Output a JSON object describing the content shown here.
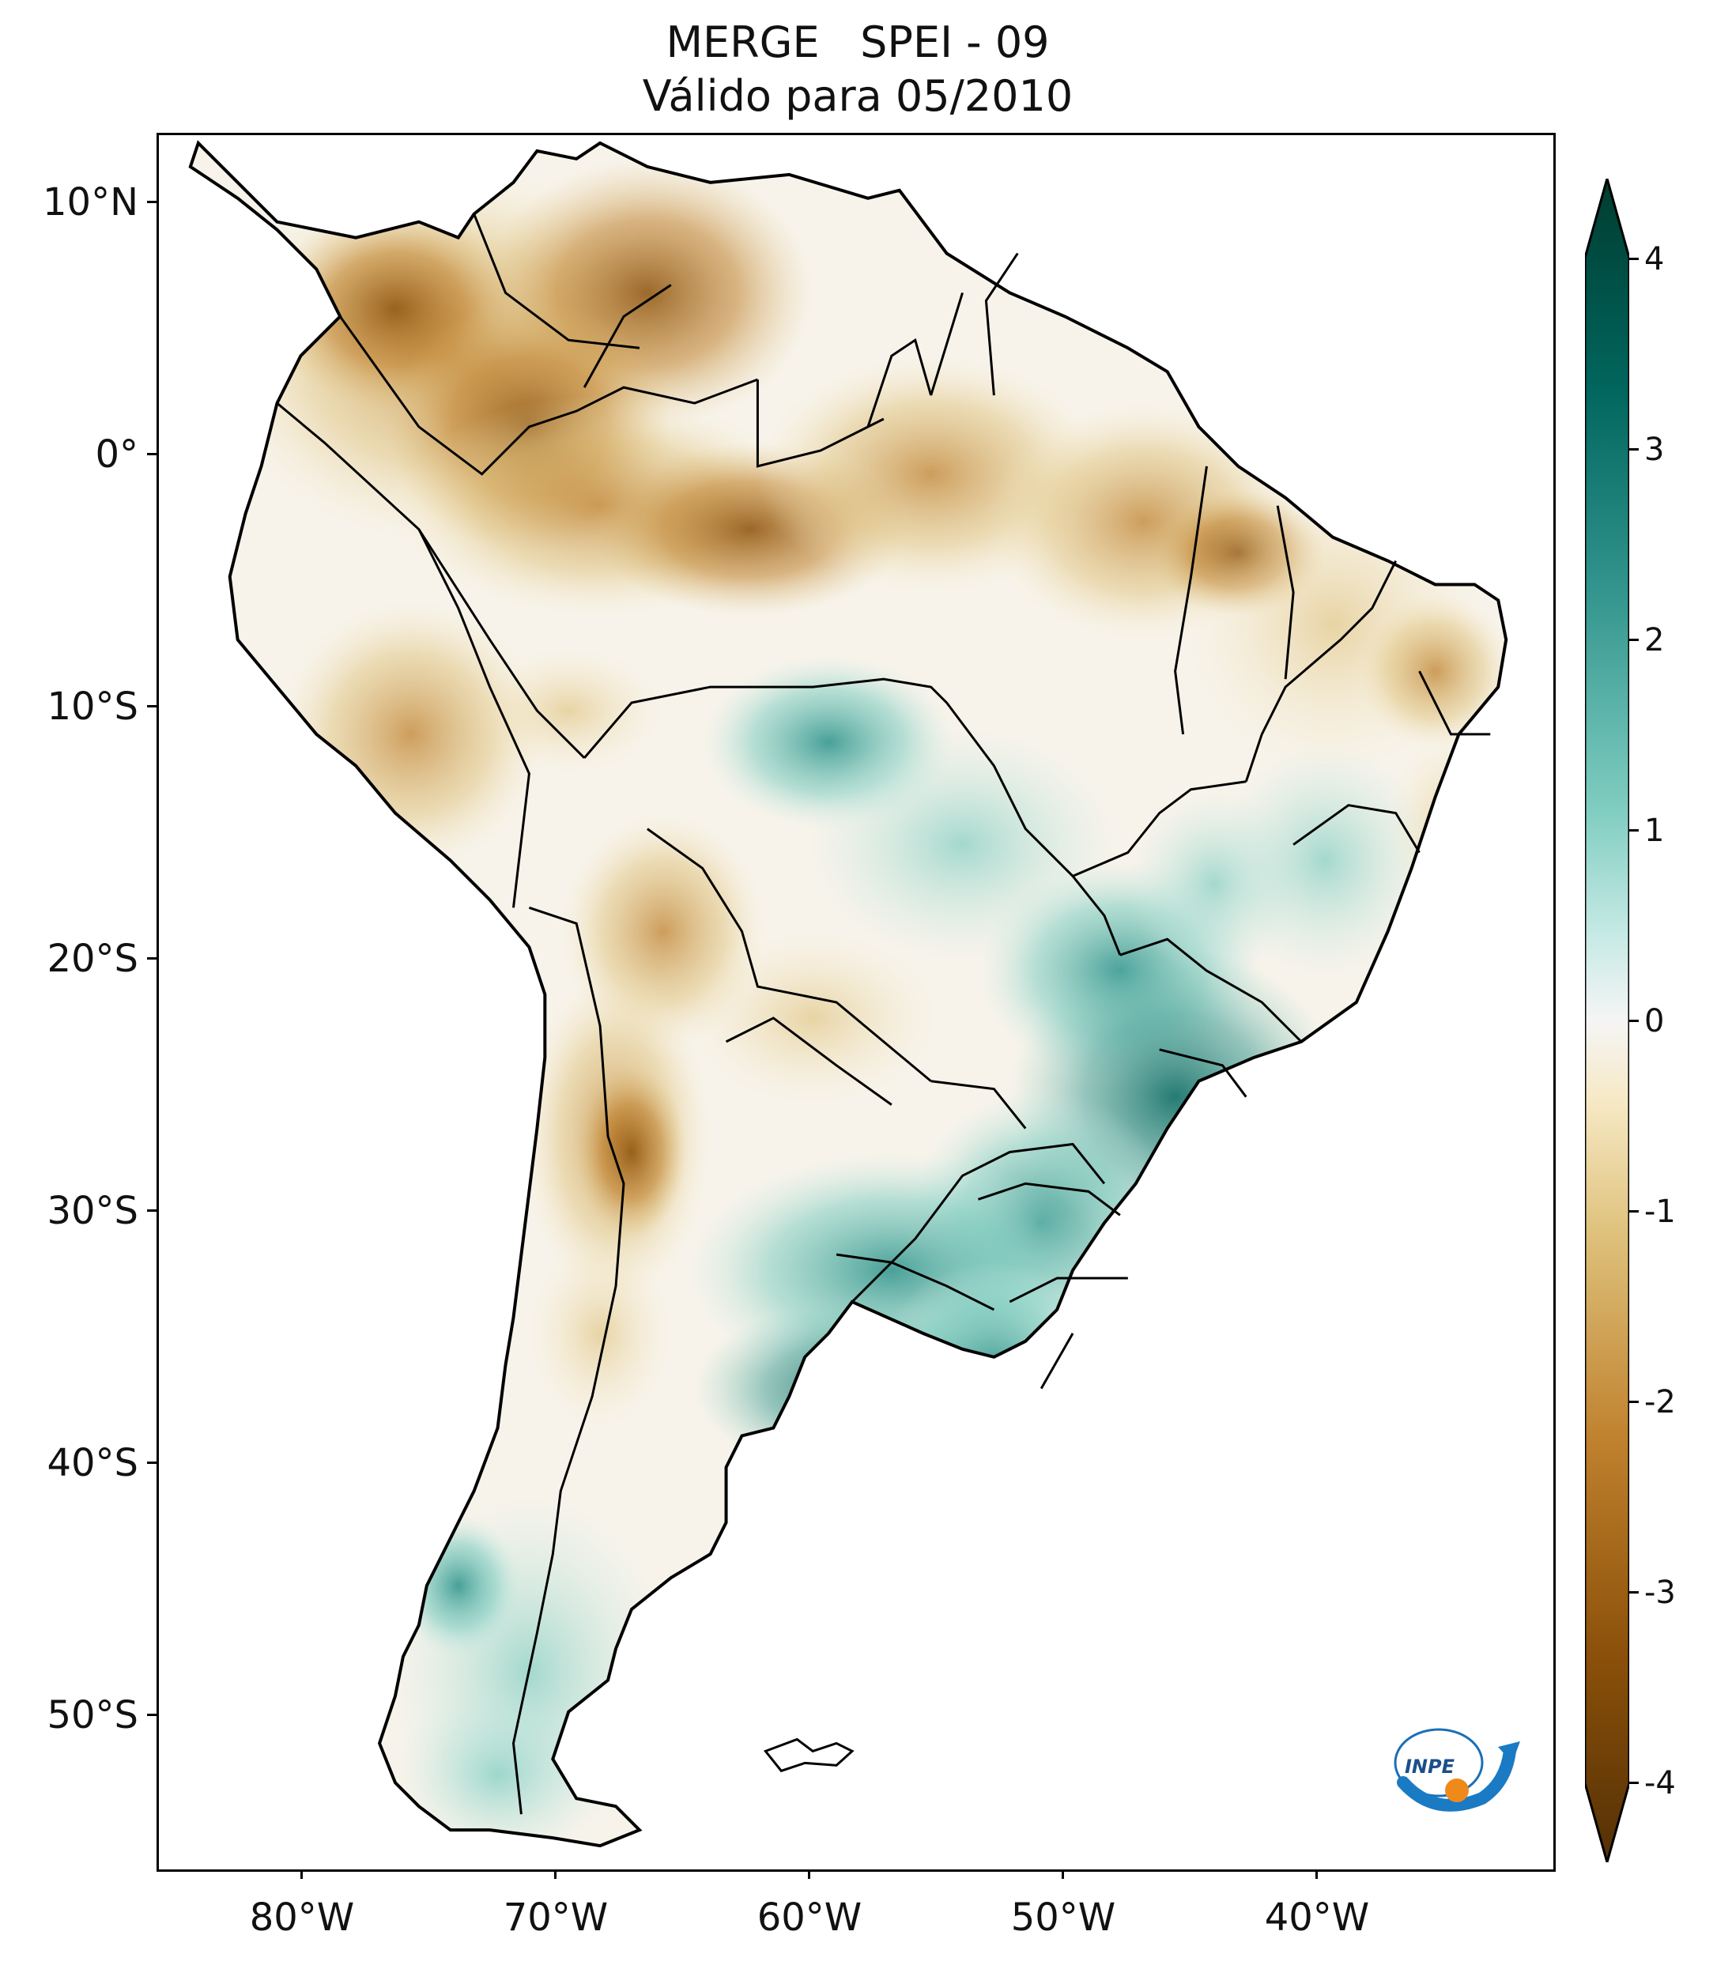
{
  "title": {
    "line1": "MERGE   SPEI - 09",
    "line2": "Válido para 05/2010"
  },
  "axes": {
    "lat_labels": [
      "10°N",
      "0°",
      "10°S",
      "20°S",
      "30°S",
      "40°S",
      "50°S"
    ],
    "lat_values": [
      10,
      0,
      -10,
      -20,
      -30,
      -40,
      -50
    ],
    "lon_labels": [
      "80°W",
      "70°W",
      "60°W",
      "50°W",
      "40°W"
    ],
    "lon_values": [
      -80,
      -70,
      -60,
      -50,
      -40
    ],
    "lon_range": [
      -85,
      -30
    ],
    "lat_range": [
      -56,
      13
    ]
  },
  "colorbar": {
    "ticks": [
      "4",
      "3",
      "2",
      "1",
      "0",
      "-1",
      "-2",
      "-3",
      "-4"
    ],
    "min": -4,
    "max": 4,
    "colors": {
      "dry_extreme": "#543005",
      "dry_strong": "#8c510a",
      "dry_mid": "#bf812d",
      "dry_light": "#dfc27d",
      "dry_faint": "#f6e8c3",
      "neutral": "#f5f5f5",
      "wet_faint": "#c7eae5",
      "wet_light": "#80cdc1",
      "wet_mid": "#35978f",
      "wet_strong": "#01665e",
      "wet_extreme": "#003c30"
    }
  },
  "logo": {
    "text": "INPE"
  }
}
